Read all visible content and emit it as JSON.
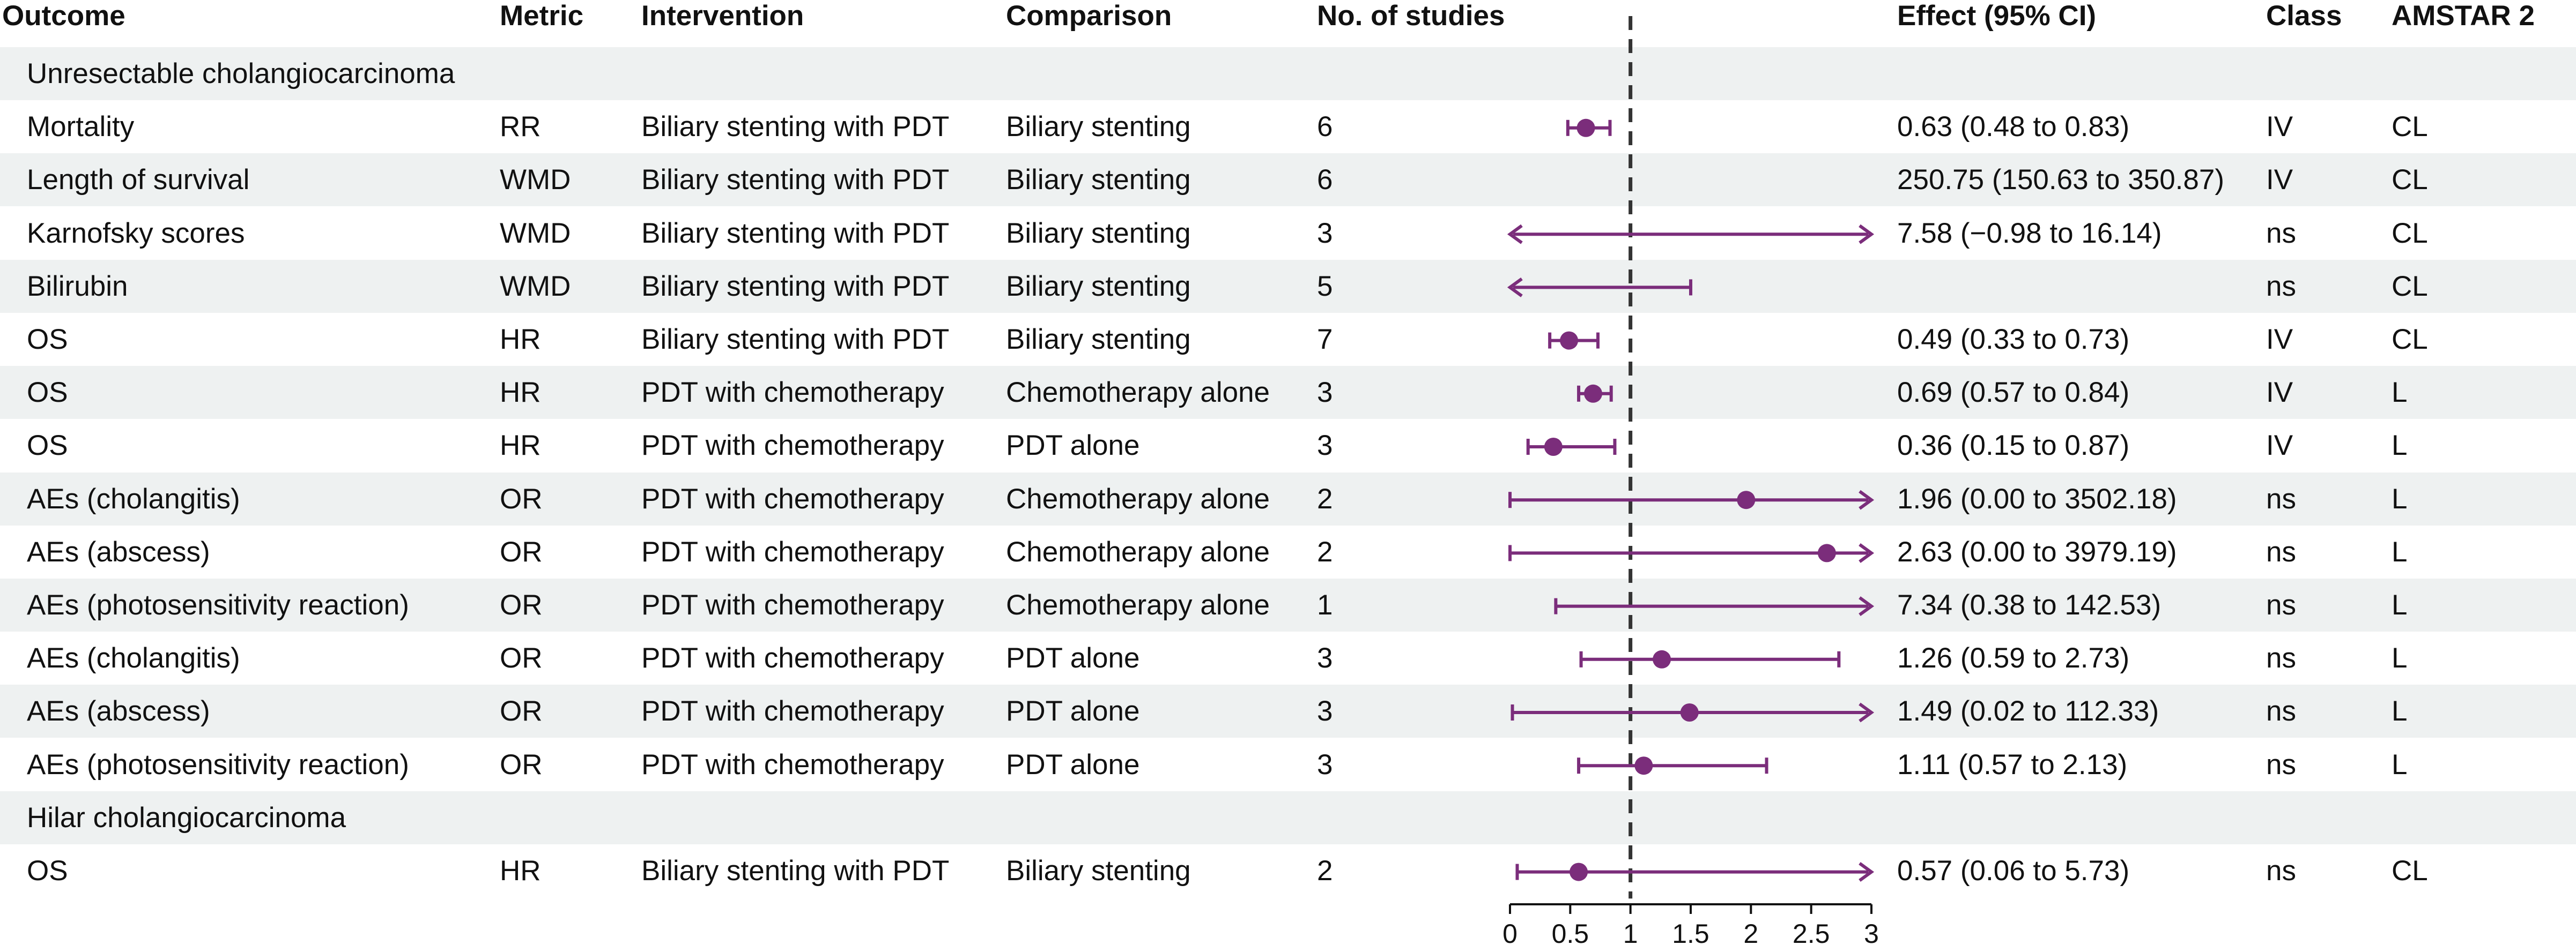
{
  "columns": {
    "outcome": "Outcome",
    "metric": "Metric",
    "intervention": "Intervention",
    "comparison": "Comparison",
    "studies": "No. of studies",
    "effect": "Effect (95% CI)",
    "class": "Class",
    "amstar": "AMSTAR 2"
  },
  "colors": {
    "marker": "#7b2d7b",
    "row_shade": "#eef1f1",
    "reference_line": "#333333"
  },
  "chart_data": {
    "type": "forest",
    "title": "",
    "reference_value": 1,
    "xlim": [
      0,
      3
    ],
    "xticks": [
      0,
      0.5,
      1,
      1.5,
      2,
      2.5,
      3
    ],
    "xtick_labels": [
      "0",
      "0.5",
      "1",
      "1.5",
      "2",
      "2.5",
      "3"
    ],
    "rows": [
      {
        "kind": "section",
        "label": "Unresectable cholangiocarcinoma",
        "shaded": true
      },
      {
        "kind": "data",
        "outcome": "Mortality",
        "metric": "RR",
        "intervention": "Biliary stenting with PDT",
        "comparison": "Biliary stenting",
        "studies": "6",
        "effect": "0.63 (0.48 to 0.83)",
        "class": "IV",
        "amstar": "CL",
        "shaded": false,
        "point": 0.63,
        "lower": 0.48,
        "upper": 0.83
      },
      {
        "kind": "data",
        "outcome": "Length of survival",
        "metric": "WMD",
        "intervention": "Biliary stenting with PDT",
        "comparison": "Biliary stenting",
        "studies": "6",
        "effect": "250.75 (150.63 to 350.87)",
        "class": "IV",
        "amstar": "CL",
        "shaded": true,
        "point": null,
        "lower": null,
        "upper": null
      },
      {
        "kind": "data",
        "outcome": "Karnofsky scores",
        "metric": "WMD",
        "intervention": "Biliary stenting with PDT",
        "comparison": "Biliary stenting",
        "studies": "3",
        "effect": "7.58 (−0.98 to 16.14)",
        "class": "ns",
        "amstar": "CL",
        "shaded": false,
        "point": null,
        "lower": -0.98,
        "upper": 16.14
      },
      {
        "kind": "data",
        "outcome": "Bilirubin",
        "metric": "WMD",
        "intervention": "Biliary stenting with PDT",
        "comparison": "Biliary stenting",
        "studies": "5",
        "effect": "",
        "class": "ns",
        "amstar": "CL",
        "shaded": true,
        "point": null,
        "lower": -1.0,
        "upper": 1.5
      },
      {
        "kind": "data",
        "outcome": "OS",
        "metric": "HR",
        "intervention": "Biliary stenting with PDT",
        "comparison": "Biliary stenting",
        "studies": "7",
        "effect": "0.49 (0.33 to 0.73)",
        "class": "IV",
        "amstar": "CL",
        "shaded": false,
        "point": 0.49,
        "lower": 0.33,
        "upper": 0.73
      },
      {
        "kind": "data",
        "outcome": "OS",
        "metric": "HR",
        "intervention": "PDT with chemotherapy",
        "comparison": "Chemotherapy alone",
        "studies": "3",
        "effect": "0.69 (0.57 to 0.84)",
        "class": "IV",
        "amstar": "L",
        "shaded": true,
        "point": 0.69,
        "lower": 0.57,
        "upper": 0.84
      },
      {
        "kind": "data",
        "outcome": "OS",
        "metric": "HR",
        "intervention": "PDT with chemotherapy",
        "comparison": "PDT alone",
        "studies": "3",
        "effect": "0.36 (0.15 to 0.87)",
        "class": "IV",
        "amstar": "L",
        "shaded": false,
        "point": 0.36,
        "lower": 0.15,
        "upper": 0.87
      },
      {
        "kind": "data",
        "outcome": "AEs (cholangitis)",
        "metric": "OR",
        "intervention": "PDT with chemotherapy",
        "comparison": "Chemotherapy alone",
        "studies": "2",
        "effect": "1.96 (0.00 to 3502.18)",
        "class": "ns",
        "amstar": "L",
        "shaded": true,
        "point": 1.96,
        "lower": 0.0,
        "upper": 3502.18
      },
      {
        "kind": "data",
        "outcome": "AEs (abscess)",
        "metric": "OR",
        "intervention": "PDT with chemotherapy",
        "comparison": "Chemotherapy alone",
        "studies": "2",
        "effect": "2.63 (0.00 to 3979.19)",
        "class": "ns",
        "amstar": "L",
        "shaded": false,
        "point": 2.63,
        "lower": 0.0,
        "upper": 3979.19
      },
      {
        "kind": "data",
        "outcome": "AEs (photosensitivity reaction)",
        "metric": "OR",
        "intervention": "PDT with chemotherapy",
        "comparison": "Chemotherapy alone",
        "studies": "1",
        "effect": "7.34 (0.38 to 142.53)",
        "class": "ns",
        "amstar": "L",
        "shaded": true,
        "point": null,
        "lower": 0.38,
        "upper": 142.53
      },
      {
        "kind": "data",
        "outcome": "AEs (cholangitis)",
        "metric": "OR",
        "intervention": "PDT with chemotherapy",
        "comparison": "PDT alone",
        "studies": "3",
        "effect": "1.26 (0.59 to 2.73)",
        "class": "ns",
        "amstar": "L",
        "shaded": false,
        "point": 1.26,
        "lower": 0.59,
        "upper": 2.73
      },
      {
        "kind": "data",
        "outcome": "AEs (abscess)",
        "metric": "OR",
        "intervention": "PDT with chemotherapy",
        "comparison": "PDT alone",
        "studies": "3",
        "effect": "1.49 (0.02 to 112.33)",
        "class": "ns",
        "amstar": "L",
        "shaded": true,
        "point": 1.49,
        "lower": 0.02,
        "upper": 112.33
      },
      {
        "kind": "data",
        "outcome": "AEs (photosensitivity reaction)",
        "metric": "OR",
        "intervention": "PDT with chemotherapy",
        "comparison": "PDT alone",
        "studies": "3",
        "effect": "1.11 (0.57 to 2.13)",
        "class": "ns",
        "amstar": "L",
        "shaded": false,
        "point": 1.11,
        "lower": 0.57,
        "upper": 2.13
      },
      {
        "kind": "section",
        "label": "Hilar cholangiocarcinoma",
        "shaded": true
      },
      {
        "kind": "data",
        "outcome": "OS",
        "metric": "HR",
        "intervention": "Biliary stenting with PDT",
        "comparison": "Biliary stenting",
        "studies": "2",
        "effect": "0.57 (0.06 to 5.73)",
        "class": "ns",
        "amstar": "CL",
        "shaded": false,
        "point": 0.57,
        "lower": 0.06,
        "upper": 5.73
      }
    ]
  }
}
